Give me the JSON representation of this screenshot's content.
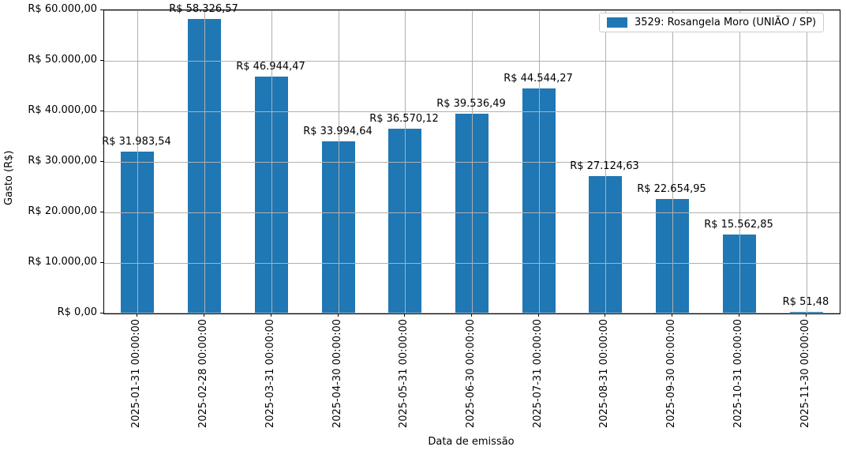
{
  "chart_data": {
    "type": "bar",
    "title": "",
    "xlabel": "Data de emissão",
    "ylabel": "Gasto (R$)",
    "categories": [
      "2025-01-31 00:00:00",
      "2025-02-28 00:00:00",
      "2025-03-31 00:00:00",
      "2025-04-30 00:00:00",
      "2025-05-31 00:00:00",
      "2025-06-30 00:00:00",
      "2025-07-31 00:00:00",
      "2025-08-31 00:00:00",
      "2025-09-30 00:00:00",
      "2025-10-31 00:00:00",
      "2025-11-30 00:00:00"
    ],
    "series": [
      {
        "name": "3529: Rosangela Moro (UNIÃO / SP)",
        "values": [
          31983.54,
          58326.57,
          46944.47,
          33994.64,
          36570.12,
          39536.49,
          44544.27,
          27124.63,
          22654.95,
          15562.85,
          51.48
        ],
        "value_labels": [
          "R$ 31.983,54",
          "R$ 58.326,57",
          "R$ 46.944,47",
          "R$ 33.994,64",
          "R$ 36.570,12",
          "R$ 39.536,49",
          "R$ 44.544,27",
          "R$ 27.124,63",
          "R$ 22.654,95",
          "R$ 15.562,85",
          "R$ 51,48"
        ],
        "color": "#1f77b4"
      }
    ],
    "ylim": [
      0,
      60000
    ],
    "ytick_values": [
      0,
      10000,
      20000,
      30000,
      40000,
      50000,
      60000
    ],
    "ytick_labels": [
      "R$ 0,00",
      "R$ 10.000,00",
      "R$ 20.000,00",
      "R$ 30.000,00",
      "R$ 40.000,00",
      "R$ 50.000,00",
      "R$ 60.000,00"
    ],
    "grid": true,
    "grid_color": "#b0b0b0",
    "legend_position": "upper right",
    "background_color": "#ffffff"
  },
  "legend": {
    "label": "3529: Rosangela Moro (UNIÃO / SP)"
  },
  "axes": {
    "xlabel": "Data de emissão",
    "ylabel": "Gasto (R$)"
  }
}
